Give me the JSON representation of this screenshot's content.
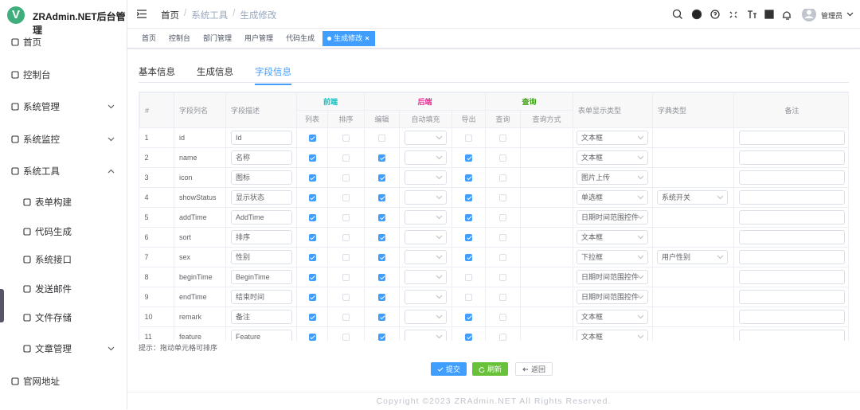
{
  "sidebar": {
    "logo": "V",
    "title": "ZRAdmin.NET后台管理",
    "menu": [
      {
        "label": "首页"
      },
      {
        "label": "控制台"
      },
      {
        "label": "系统管理",
        "expanded": false
      },
      {
        "label": "系统监控",
        "expanded": false
      },
      {
        "label": "系统工具",
        "expanded": true
      },
      {
        "label": "表单构建",
        "level": 2
      },
      {
        "label": "代码生成",
        "level": 2
      },
      {
        "label": "系统接口",
        "level": 2
      },
      {
        "label": "发送邮件",
        "level": 2
      },
      {
        "label": "文件存储",
        "level": 2
      },
      {
        "label": "文章管理",
        "level": 2,
        "expanded": false
      },
      {
        "label": "官网地址"
      }
    ]
  },
  "header": {
    "breadcrumb": [
      "首页",
      "系统工具",
      "生成修改"
    ],
    "separator": "/",
    "user": "管理员"
  },
  "tags": {
    "items": [
      "首页",
      "控制台",
      "部门管理",
      "用户管理",
      "代码生成",
      "生成修改"
    ],
    "active": 5
  },
  "tabs": {
    "items": [
      "基本信息",
      "生成信息",
      "字段信息"
    ],
    "active": 2
  },
  "table": {
    "headers": {
      "no": "#",
      "column": "字段列名",
      "desc": "字段描述",
      "groups": [
        {
          "label": "前端",
          "color": "#13c2c2",
          "cols": [
            "列表",
            "排序"
          ]
        },
        {
          "label": "后端",
          "color": "#eb2f96",
          "cols": [
            "编辑",
            "自动填充",
            "导出"
          ]
        },
        {
          "label": "查询",
          "color": "#389e0d",
          "cols": [
            "查询",
            "查询方式"
          ]
        }
      ],
      "form_type": "表单显示类型",
      "dict": "字典类型",
      "remark": "备注"
    },
    "rows": [
      {
        "no": 1,
        "column": "id",
        "desc": "Id",
        "list": true,
        "sort": false,
        "edit": false,
        "export": false,
        "query": false,
        "form_type": "文本框"
      },
      {
        "no": 2,
        "column": "name",
        "desc": "名称",
        "list": true,
        "sort": false,
        "edit": true,
        "export": true,
        "query": false,
        "form_type": "文本框"
      },
      {
        "no": 3,
        "column": "icon",
        "desc": "图标",
        "list": true,
        "sort": false,
        "edit": true,
        "export": true,
        "query": false,
        "form_type": "图片上传"
      },
      {
        "no": 4,
        "column": "showStatus",
        "desc": "显示状态",
        "list": true,
        "sort": false,
        "edit": true,
        "export": true,
        "query": false,
        "form_type": "单选框",
        "dict": "系统开关"
      },
      {
        "no": 5,
        "column": "addTime",
        "desc": "AddTime",
        "list": true,
        "sort": false,
        "edit": true,
        "export": true,
        "query": false,
        "form_type": "日期时间范围控件"
      },
      {
        "no": 6,
        "column": "sort",
        "desc": "排序",
        "list": true,
        "sort": false,
        "edit": true,
        "export": true,
        "query": false,
        "form_type": "文本框"
      },
      {
        "no": 7,
        "column": "sex",
        "desc": "性别",
        "list": true,
        "sort": false,
        "edit": true,
        "export": true,
        "query": false,
        "form_type": "下拉框",
        "dict": "用户性别"
      },
      {
        "no": 8,
        "column": "beginTime",
        "desc": "BeginTime",
        "list": true,
        "sort": false,
        "edit": true,
        "export": false,
        "query": false,
        "form_type": "日期时间范围控件"
      },
      {
        "no": 9,
        "column": "endTime",
        "desc": "结束时间",
        "list": true,
        "sort": false,
        "edit": true,
        "export": false,
        "query": false,
        "form_type": "日期时间范围控件"
      },
      {
        "no": 10,
        "column": "remark",
        "desc": "备注",
        "list": true,
        "sort": false,
        "edit": true,
        "export": true,
        "query": false,
        "form_type": "文本框"
      },
      {
        "no": 11,
        "column": "feature",
        "desc": "Feature",
        "list": true,
        "sort": false,
        "edit": true,
        "export": true,
        "query": false,
        "form_type": "文本框"
      }
    ]
  },
  "hint": "提示：拖动单元格可排序",
  "buttons": [
    "提交",
    "刷新",
    "返回"
  ],
  "footer": "Copyright ©2023 ZRAdmin.NET All Rights Reserved."
}
